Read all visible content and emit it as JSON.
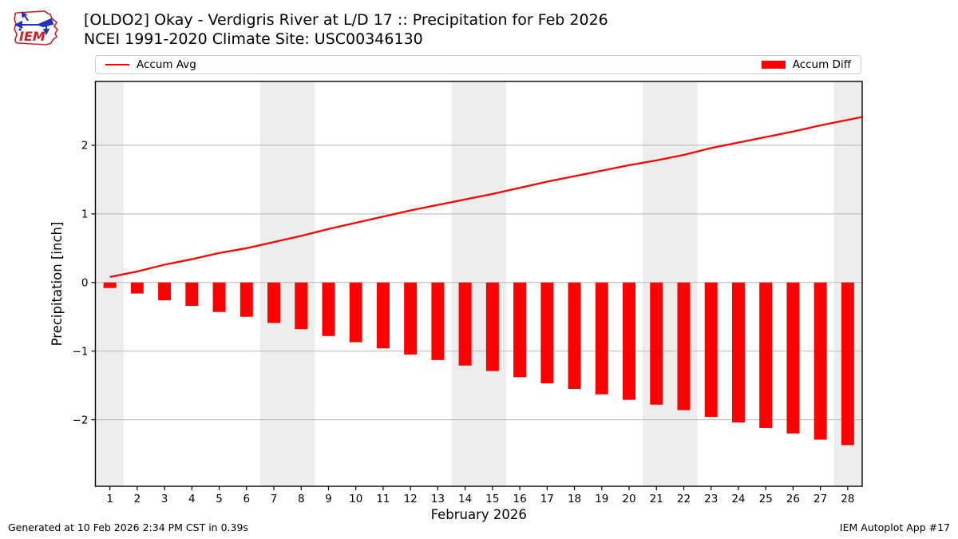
{
  "header": {
    "title": "[OLDO2] Okay - Verdigris River at L/D 17 :: Precipitation for Feb 2026",
    "subtitle": "NCEI 1991-2020 Climate Site: USC00346130",
    "logo_text": "IEM"
  },
  "legend": {
    "line_label": "Accum Avg",
    "bar_label": "Accum Diff"
  },
  "footer": {
    "generated": "Generated at 10 Feb 2026 2:34 PM CST in 0.39s",
    "credit": "IEM Autoplot App #17"
  },
  "colors": {
    "series_red": "#ff0000",
    "weekend_band": "#ededed",
    "gridline": "#b9b9b9",
    "spine": "#000000",
    "legend_border": "#cfcfcf",
    "logo_red": "#cc2027",
    "logo_blue": "#2233bb"
  },
  "chart_data": {
    "type": "bar",
    "title": "[OLDO2] Okay - Verdigris River at L/D 17 :: Precipitation for Feb 2026",
    "subtitle": "NCEI 1991-2020 Climate Site: USC00346130",
    "xlabel": "February 2026",
    "ylabel": "Precipitation [inch]",
    "x": [
      1,
      2,
      3,
      4,
      5,
      6,
      7,
      8,
      9,
      10,
      11,
      12,
      13,
      14,
      15,
      16,
      17,
      18,
      19,
      20,
      21,
      22,
      23,
      24,
      25,
      26,
      27,
      28
    ],
    "series": [
      {
        "name": "Accum Avg",
        "type": "line",
        "color": "#ff0000",
        "values": [
          0.08,
          0.16,
          0.26,
          0.34,
          0.43,
          0.5,
          0.59,
          0.68,
          0.78,
          0.87,
          0.96,
          1.05,
          1.13,
          1.21,
          1.29,
          1.38,
          1.47,
          1.55,
          1.63,
          1.71,
          1.78,
          1.86,
          1.96,
          2.04,
          2.12,
          2.2,
          2.29,
          2.37
        ]
      },
      {
        "name": "Accum Diff",
        "type": "bar",
        "color": "#ff0000",
        "values": [
          -0.08,
          -0.16,
          -0.26,
          -0.34,
          -0.43,
          -0.5,
          -0.59,
          -0.68,
          -0.78,
          -0.87,
          -0.96,
          -1.05,
          -1.13,
          -1.21,
          -1.29,
          -1.38,
          -1.47,
          -1.55,
          -1.63,
          -1.71,
          -1.78,
          -1.86,
          -1.96,
          -2.04,
          -2.12,
          -2.2,
          -2.29,
          -2.37
        ]
      }
    ],
    "xticks": [
      1,
      2,
      3,
      4,
      5,
      6,
      7,
      8,
      9,
      10,
      11,
      12,
      13,
      14,
      15,
      16,
      17,
      18,
      19,
      20,
      21,
      22,
      23,
      24,
      25,
      26,
      27,
      28
    ],
    "yticks": [
      -2,
      -1,
      0,
      1,
      2
    ],
    "xlim": [
      0.47,
      28.53
    ],
    "ylim": [
      -2.97,
      2.93
    ],
    "weekend_bands": [
      [
        0.47,
        1.5
      ],
      [
        6.5,
        8.5
      ],
      [
        13.5,
        15.5
      ],
      [
        20.5,
        22.5
      ],
      [
        27.5,
        28.53
      ]
    ],
    "grid": true,
    "legend_position": "top"
  }
}
